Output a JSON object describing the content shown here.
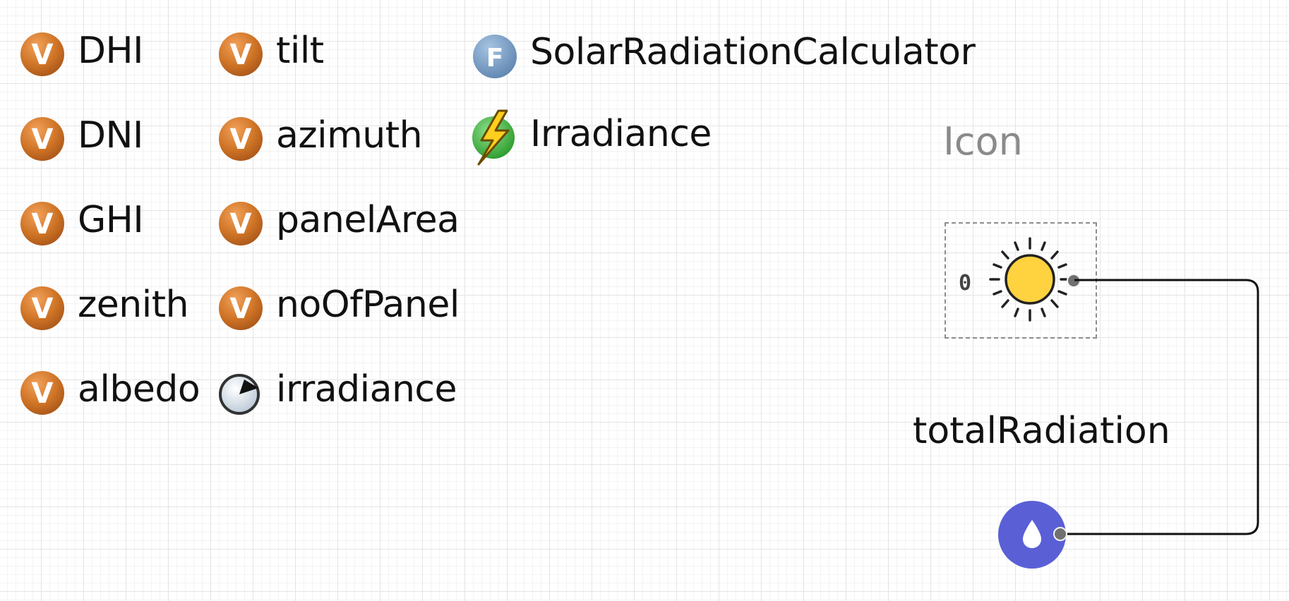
{
  "variables_col1": [
    {
      "label": "DHI",
      "icon": "variable-v-icon"
    },
    {
      "label": "DNI",
      "icon": "variable-v-icon"
    },
    {
      "label": "GHI",
      "icon": "variable-v-icon"
    },
    {
      "label": "zenith",
      "icon": "variable-v-icon"
    },
    {
      "label": "albedo",
      "icon": "variable-v-icon"
    }
  ],
  "variables_col2": [
    {
      "label": "tilt",
      "icon": "variable-v-icon"
    },
    {
      "label": "azimuth",
      "icon": "variable-v-icon"
    },
    {
      "label": "panelArea",
      "icon": "variable-v-icon"
    },
    {
      "label": "noOfPanel",
      "icon": "variable-v-icon"
    },
    {
      "label": "irradiance",
      "icon": "gauge-icon"
    }
  ],
  "functions": [
    {
      "label": "SolarRadiationCalculator",
      "icon": "function-f-icon",
      "letter": "F"
    },
    {
      "label": "Irradiance",
      "icon": "lightning-icon"
    }
  ],
  "icon_widget": {
    "title": "Icon",
    "value": "0",
    "icon": "sun-icon"
  },
  "output_widget": {
    "label": "totalRadiation",
    "icon": "water-drop-icon"
  },
  "colors": {
    "variable_orange": "#c96d1f",
    "function_blue": "#6f97c2",
    "lightning_green": "#3db33d",
    "sun_yellow": "#ffd23f",
    "drop_purple": "#5a5fd6",
    "wire": "#111111"
  }
}
